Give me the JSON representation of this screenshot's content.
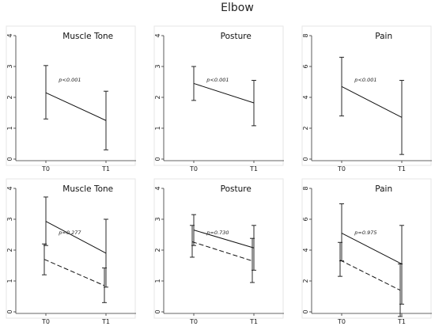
{
  "figure_title": "Elbow",
  "colors": {
    "line": "#111111",
    "frame": "#e6e6e6",
    "axis": "#333333"
  },
  "chart_data": [
    {
      "type": "line",
      "title": "Muscle Tone",
      "categories": [
        "T0",
        "T1"
      ],
      "ylim": [
        0,
        4
      ],
      "yticks": [
        "0",
        "1",
        "2",
        "3",
        "4"
      ],
      "annotation": "p<0.001",
      "series": [
        {
          "values": [
            2.15,
            1.25
          ],
          "lower": [
            1.3,
            0.3
          ],
          "upper": [
            3.03,
            2.2
          ],
          "dash": "solid"
        }
      ]
    },
    {
      "type": "line",
      "title": "Posture",
      "categories": [
        "T0",
        "T1"
      ],
      "ylim": [
        0,
        4
      ],
      "yticks": [
        "0",
        "1",
        "2",
        "3",
        "4"
      ],
      "annotation": "p<0.001",
      "series": [
        {
          "values": [
            2.45,
            1.82
          ],
          "lower": [
            1.9,
            1.08
          ],
          "upper": [
            3.0,
            2.55
          ],
          "dash": "solid"
        }
      ]
    },
    {
      "type": "line",
      "title": "Pain",
      "categories": [
        "T0",
        "T1"
      ],
      "ylim": [
        0,
        8
      ],
      "yticks": [
        "0",
        "2",
        "4",
        "6",
        "8"
      ],
      "annotation": "p<0.001",
      "series": [
        {
          "values": [
            4.7,
            2.7
          ],
          "lower": [
            2.8,
            0.3
          ],
          "upper": [
            6.6,
            5.1
          ],
          "dash": "solid"
        }
      ]
    },
    {
      "type": "line",
      "title": "Muscle Tone",
      "categories": [
        "T0",
        "T1"
      ],
      "ylim": [
        0,
        4
      ],
      "yticks": [
        "0",
        "1",
        "2",
        "3",
        "4"
      ],
      "annotation": "p=0.277",
      "series": [
        {
          "values": [
            2.93,
            1.9
          ],
          "lower": [
            2.15,
            0.8
          ],
          "upper": [
            3.72,
            3.0
          ],
          "dash": "solid"
        },
        {
          "values": [
            1.7,
            0.85
          ],
          "lower": [
            1.2,
            0.3
          ],
          "upper": [
            2.2,
            1.42
          ],
          "dash": "dashed"
        }
      ]
    },
    {
      "type": "line",
      "title": "Posture",
      "categories": [
        "T0",
        "T1"
      ],
      "ylim": [
        0,
        4
      ],
      "yticks": [
        "0",
        "1",
        "2",
        "3",
        "4"
      ],
      "annotation": "p=0.730",
      "series": [
        {
          "values": [
            2.65,
            2.07
          ],
          "lower": [
            2.15,
            1.35
          ],
          "upper": [
            3.15,
            2.8
          ],
          "dash": "solid"
        },
        {
          "values": [
            2.27,
            1.65
          ],
          "lower": [
            1.77,
            0.95
          ],
          "upper": [
            2.8,
            2.38
          ],
          "dash": "dashed"
        }
      ]
    },
    {
      "type": "line",
      "title": "Pain",
      "categories": [
        "T0",
        "T1"
      ],
      "ylim": [
        0,
        8
      ],
      "yticks": [
        "0",
        "2",
        "4",
        "6",
        "8"
      ],
      "annotation": "p=0.975",
      "series": [
        {
          "values": [
            5.1,
            3.1
          ],
          "lower": [
            3.3,
            0.5
          ],
          "upper": [
            7.0,
            5.6
          ],
          "dash": "solid"
        },
        {
          "values": [
            3.35,
            1.4
          ],
          "lower": [
            2.3,
            -0.3
          ],
          "upper": [
            4.5,
            3.1
          ],
          "dash": "dashed"
        }
      ]
    }
  ]
}
